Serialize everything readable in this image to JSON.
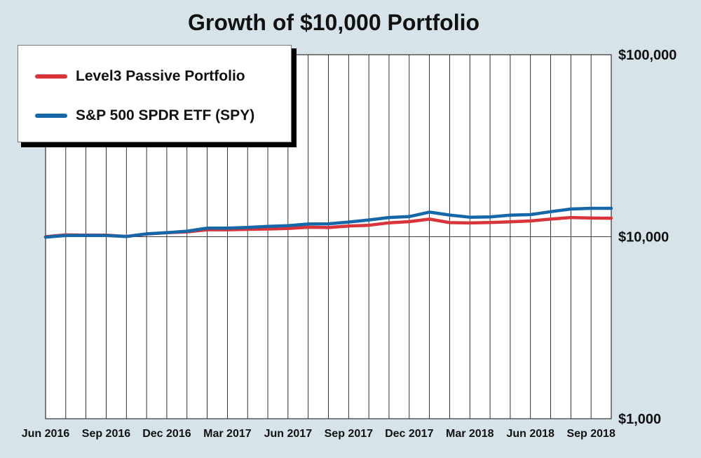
{
  "chart_data": {
    "type": "line",
    "title": "Growth of $10,000 Portfolio",
    "xlabel": "",
    "ylabel": "",
    "y_scale": "log",
    "ylim": [
      1000,
      100000
    ],
    "y_ticks": [
      {
        "value": 100000,
        "label": "$100,000"
      },
      {
        "value": 10000,
        "label": "$10,000"
      },
      {
        "value": 1000,
        "label": "$1,000"
      }
    ],
    "x": [
      "2016-06",
      "2016-07",
      "2016-08",
      "2016-09",
      "2016-10",
      "2016-11",
      "2016-12",
      "2017-01",
      "2017-02",
      "2017-03",
      "2017-04",
      "2017-05",
      "2017-06",
      "2017-07",
      "2017-08",
      "2017-09",
      "2017-10",
      "2017-11",
      "2017-12",
      "2018-01",
      "2018-02",
      "2018-03",
      "2018-04",
      "2018-05",
      "2018-06",
      "2018-07",
      "2018-08",
      "2018-09",
      "2018-10"
    ],
    "x_tick_labels": [
      {
        "index": 0,
        "label": "Jun 2016"
      },
      {
        "index": 3,
        "label": "Sep 2016"
      },
      {
        "index": 6,
        "label": "Dec 2016"
      },
      {
        "index": 9,
        "label": "Mar 2017"
      },
      {
        "index": 12,
        "label": "Jun 2017"
      },
      {
        "index": 15,
        "label": "Sep 2017"
      },
      {
        "index": 18,
        "label": "Dec 2017"
      },
      {
        "index": 21,
        "label": "Mar 2018"
      },
      {
        "index": 24,
        "label": "Jun 2018"
      },
      {
        "index": 27,
        "label": "Sep 2018"
      }
    ],
    "series": [
      {
        "name": "Level3 Passive Portfolio",
        "color": "#d9343a",
        "values": [
          10000,
          10230,
          10200,
          10200,
          10040,
          10350,
          10520,
          10630,
          10920,
          10920,
          10980,
          11030,
          11100,
          11270,
          11230,
          11450,
          11560,
          11920,
          12100,
          12500,
          11950,
          11900,
          11960,
          12080,
          12210,
          12500,
          12750,
          12660,
          12640
        ]
      },
      {
        "name": "S&P 500 SPDR ETF (SPY)",
        "color": "#1567a8",
        "values": [
          9950,
          10150,
          10170,
          10150,
          10030,
          10370,
          10530,
          10730,
          11150,
          11150,
          11250,
          11400,
          11500,
          11740,
          11770,
          12040,
          12360,
          12750,
          12900,
          13650,
          13150,
          12800,
          12850,
          13130,
          13220,
          13730,
          14200,
          14330,
          14330
        ]
      }
    ],
    "grid": true,
    "legend_position": "top-left"
  },
  "colors": {
    "background": "#d6e4ea",
    "plot_background": "#ffffff",
    "grid": "#000000"
  }
}
